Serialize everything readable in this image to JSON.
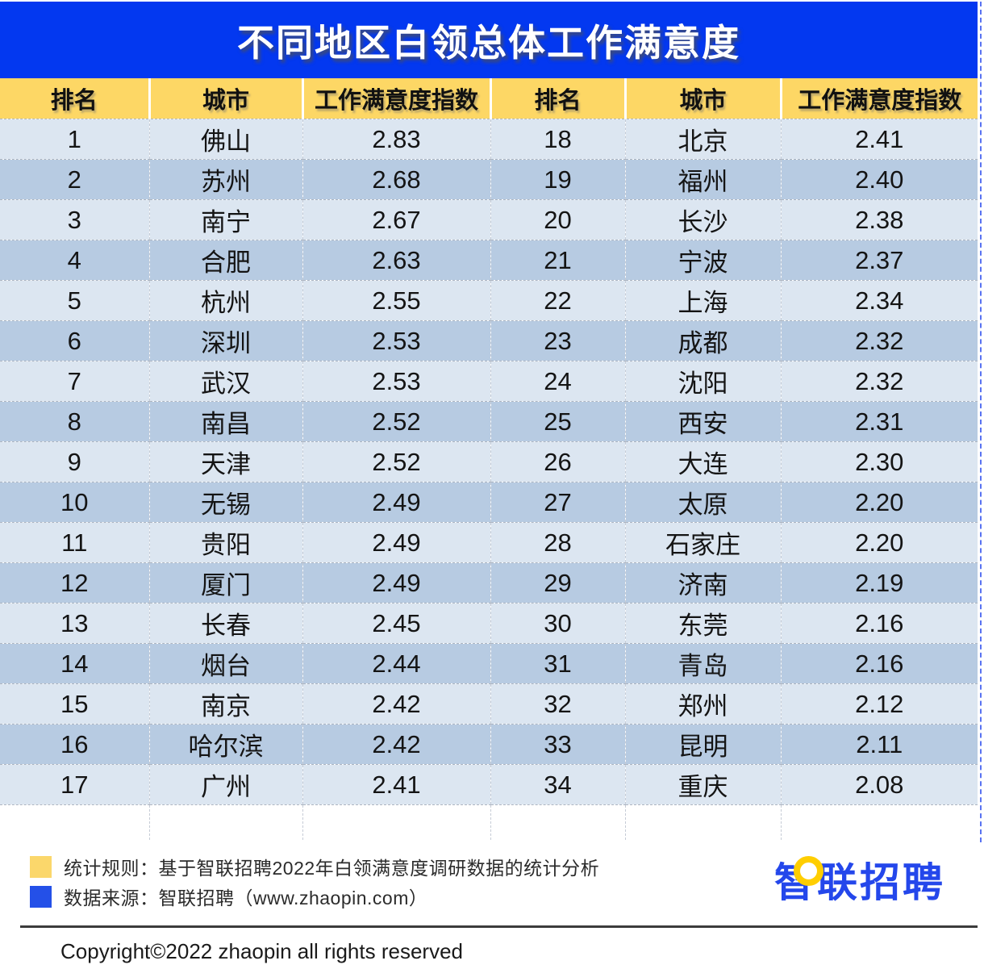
{
  "chart_data": {
    "type": "table",
    "title": "不同地区白领总体工作满意度",
    "columns": [
      "排名",
      "城市",
      "工作满意度指数"
    ],
    "rows": [
      [
        "1",
        "佛山",
        "2.83"
      ],
      [
        "2",
        "苏州",
        "2.68"
      ],
      [
        "3",
        "南宁",
        "2.67"
      ],
      [
        "4",
        "合肥",
        "2.63"
      ],
      [
        "5",
        "杭州",
        "2.55"
      ],
      [
        "6",
        "深圳",
        "2.53"
      ],
      [
        "7",
        "武汉",
        "2.53"
      ],
      [
        "8",
        "南昌",
        "2.52"
      ],
      [
        "9",
        "天津",
        "2.52"
      ],
      [
        "10",
        "无锡",
        "2.49"
      ],
      [
        "11",
        "贵阳",
        "2.49"
      ],
      [
        "12",
        "厦门",
        "2.49"
      ],
      [
        "13",
        "长春",
        "2.45"
      ],
      [
        "14",
        "烟台",
        "2.44"
      ],
      [
        "15",
        "南京",
        "2.42"
      ],
      [
        "16",
        "哈尔滨",
        "2.42"
      ],
      [
        "17",
        "广州",
        "2.41"
      ],
      [
        "18",
        "北京",
        "2.41"
      ],
      [
        "19",
        "福州",
        "2.40"
      ],
      [
        "20",
        "长沙",
        "2.38"
      ],
      [
        "21",
        "宁波",
        "2.37"
      ],
      [
        "22",
        "上海",
        "2.34"
      ],
      [
        "23",
        "成都",
        "2.32"
      ],
      [
        "24",
        "沈阳",
        "2.32"
      ],
      [
        "25",
        "西安",
        "2.31"
      ],
      [
        "26",
        "大连",
        "2.30"
      ],
      [
        "27",
        "太原",
        "2.20"
      ],
      [
        "28",
        "石家庄",
        "2.20"
      ],
      [
        "29",
        "济南",
        "2.19"
      ],
      [
        "30",
        "东莞",
        "2.16"
      ],
      [
        "31",
        "青岛",
        "2.16"
      ],
      [
        "32",
        "郑州",
        "2.12"
      ],
      [
        "33",
        "昆明",
        "2.11"
      ],
      [
        "34",
        "重庆",
        "2.08"
      ]
    ],
    "layout": "two-column table, ranks 1-17 left, 18-34 right, striped rows"
  },
  "footer": {
    "legend": [
      {
        "swatch_color": "#FBD76B",
        "label": "统计规则：基于智联招聘2022年白领满意度调研数据的统计分析"
      },
      {
        "swatch_color": "#2450E8",
        "label": "数据来源：智联招聘（www.zhaopin.com）"
      }
    ],
    "logo_text": "智联招聘",
    "copyright": "Copyright©2022 zhaopin all rights reserved"
  },
  "colors": {
    "title_bar": "#0338F0",
    "header_bg": "#FDD765",
    "row_light": "#DCE6F1",
    "row_dark": "#B7CBE2",
    "logo_blue": "#2447EB"
  }
}
